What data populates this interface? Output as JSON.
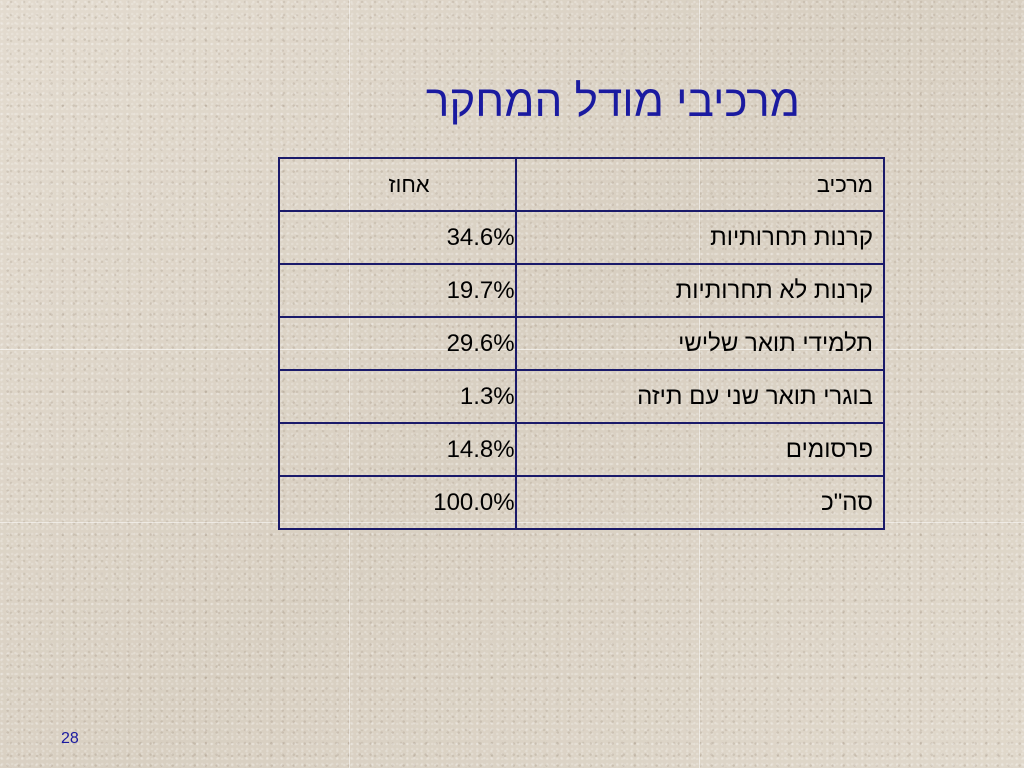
{
  "slide": {
    "title": "מרכיבי מודל המחקר",
    "page_number": "28"
  },
  "table": {
    "headers": {
      "component": "מרכיב",
      "percent": "אחוז"
    },
    "rows": [
      {
        "component": "קרנות תחרותיות",
        "percent": "34.6%"
      },
      {
        "component": "קרנות לא תחרותיות",
        "percent": "19.7%"
      },
      {
        "component": "תלמידי תואר שלישי",
        "percent": "29.6%"
      },
      {
        "component": "בוגרי תואר שני עם תיזה",
        "percent": "1.3%"
      },
      {
        "component": "פרסומים",
        "percent": "14.8%"
      },
      {
        "component": "סה\"כ",
        "percent": "100.0%"
      }
    ]
  }
}
